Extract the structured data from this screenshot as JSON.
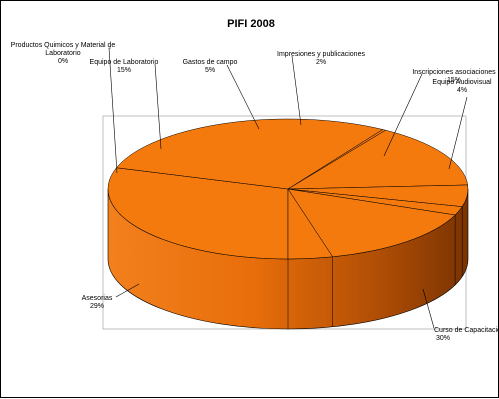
{
  "chart_data": {
    "type": "pie",
    "title": "PIFI 2008",
    "slices": [
      {
        "name": "Curso de Capacitacion",
        "label": "Curso de Capacitacion",
        "pct_label": "30%",
        "value": 30
      },
      {
        "name": "Asesorias",
        "label": "Asesorias",
        "pct_label": "29%",
        "value": 29
      },
      {
        "name": "Productos Quimicos y Material de Laboratorio",
        "label": "Productos Quimicos y Material de Laboratorio",
        "pct_label": "0%",
        "value": 0.3
      },
      {
        "name": "Equipo de Laboratorio",
        "label": "Equipo de Laboratorio",
        "pct_label": "15%",
        "value": 15
      },
      {
        "name": "Gastos de campo",
        "label": "Gastos de campo",
        "pct_label": "5%",
        "value": 5
      },
      {
        "name": "Impresiones y publicaciones",
        "label": "Impresiones y publicaciones",
        "pct_label": "2%",
        "value": 2
      },
      {
        "name": "Inscripciones asociaciones",
        "label": "Inscripciones asociaciones",
        "pct_label": "15%",
        "value": 15
      },
      {
        "name": "Equipo Audiovisual",
        "label": "Equipo Audiovisual",
        "pct_label": "4%",
        "value": 4
      }
    ],
    "colors": {
      "top": "#f57a0e",
      "side_light": "#f08a2e",
      "side_dark": "#8a3a04",
      "edge": "#000000",
      "frame": "#000000",
      "plot_area_border": "#b0b0b0"
    },
    "style": "3d-pie"
  }
}
